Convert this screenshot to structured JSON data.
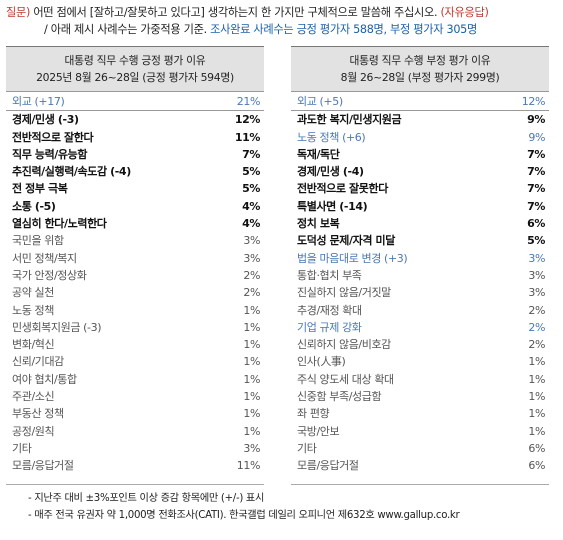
{
  "question": {
    "prefix": "질문)",
    "text": " 어떤 점에서 [잘하고/잘못하고 있다고] 생각하는지 한 가지만 구체적으로 말씀해 주십시오.",
    "tag": "(자유응답)",
    "line2_intro": "/ 아래 제시 사례수는 가중적용 기준.",
    "line2_detail": "조사완료 사례수는 긍정 평가자 588명, 부정 평가자 305명"
  },
  "left_panel": {
    "title": "대통령 직무 수행 긍정 평가 이유",
    "subtitle": "2025년 8월 26~28일 (긍정 평가자 594명)",
    "rows": [
      {
        "label": "외교 (+17)",
        "pct": "21%",
        "style": "blue"
      },
      {
        "label": "경제/민생 (-3)",
        "pct": "12%",
        "style": "bold"
      },
      {
        "label": "전반적으로 잘한다",
        "pct": "11%",
        "style": "bold"
      },
      {
        "label": "직무 능력/유능함",
        "pct": "7%",
        "style": "bold"
      },
      {
        "label": "추진력/실행력/속도감 (-4)",
        "pct": "5%",
        "style": "bold"
      },
      {
        "label": "전 정부 극복",
        "pct": "5%",
        "style": "bold"
      },
      {
        "label": "소통 (-5)",
        "pct": "4%",
        "style": "bold"
      },
      {
        "label": "열심히 한다/노력한다",
        "pct": "4%",
        "style": "bold"
      },
      {
        "label": "국민을 위함",
        "pct": "3%",
        "style": "light"
      },
      {
        "label": "서민 정책/복지",
        "pct": "3%",
        "style": "light"
      },
      {
        "label": "국가 안정/정상화",
        "pct": "2%",
        "style": "light"
      },
      {
        "label": "공약 실천",
        "pct": "2%",
        "style": "light"
      },
      {
        "label": "노동 정책",
        "pct": "1%",
        "style": "light"
      },
      {
        "label": "민생회복지원금 (-3)",
        "pct": "1%",
        "style": "light"
      },
      {
        "label": "변화/혁신",
        "pct": "1%",
        "style": "light"
      },
      {
        "label": "신뢰/기대감",
        "pct": "1%",
        "style": "light"
      },
      {
        "label": "여야 협치/통합",
        "pct": "1%",
        "style": "light"
      },
      {
        "label": "주관/소신",
        "pct": "1%",
        "style": "light"
      },
      {
        "label": "부동산 정책",
        "pct": "1%",
        "style": "light"
      },
      {
        "label": "공정/원칙",
        "pct": "1%",
        "style": "light"
      },
      {
        "label": "기타",
        "pct": "3%",
        "style": "light"
      },
      {
        "label": "모름/응답거절",
        "pct": "11%",
        "style": "light"
      }
    ]
  },
  "right_panel": {
    "title": "대통령 직무 수행 부정 평가 이유",
    "subtitle": "8월 26~28일 (부정 평가자 299명)",
    "rows": [
      {
        "label": "외교 (+5)",
        "pct": "12%",
        "style": "blue"
      },
      {
        "label": "과도한 복지/민생지원금",
        "pct": "9%",
        "style": "bold"
      },
      {
        "label": "노동 정책 (+6)",
        "pct": "9%",
        "style": "blue"
      },
      {
        "label": "독재/독단",
        "pct": "7%",
        "style": "bold"
      },
      {
        "label": "경제/민생 (-4)",
        "pct": "7%",
        "style": "bold"
      },
      {
        "label": "전반적으로 잘못한다",
        "pct": "7%",
        "style": "bold"
      },
      {
        "label": "특별사면 (-14)",
        "pct": "7%",
        "style": "bold"
      },
      {
        "label": "정치 보복",
        "pct": "6%",
        "style": "bold"
      },
      {
        "label": "도덕성 문제/자격 미달",
        "pct": "5%",
        "style": "bold"
      },
      {
        "label": "법을 마음대로 변경 (+3)",
        "pct": "3%",
        "style": "blue"
      },
      {
        "label": "통합·협치 부족",
        "pct": "3%",
        "style": "light"
      },
      {
        "label": "진실하지 않음/거짓말",
        "pct": "3%",
        "style": "light"
      },
      {
        "label": "추경/재정 확대",
        "pct": "2%",
        "style": "light"
      },
      {
        "label": "기업 규제 강화",
        "pct": "2%",
        "style": "blue"
      },
      {
        "label": "신뢰하지 않음/비호감",
        "pct": "2%",
        "style": "light"
      },
      {
        "label": "인사(人事)",
        "pct": "1%",
        "style": "light"
      },
      {
        "label": "주식 양도세 대상 확대",
        "pct": "1%",
        "style": "light"
      },
      {
        "label": "신중함 부족/성급함",
        "pct": "1%",
        "style": "light"
      },
      {
        "label": "좌 편향",
        "pct": "1%",
        "style": "light"
      },
      {
        "label": "국방/안보",
        "pct": "1%",
        "style": "light"
      },
      {
        "label": "기타",
        "pct": "6%",
        "style": "light"
      },
      {
        "label": "모름/응답거절",
        "pct": "6%",
        "style": "light"
      }
    ]
  },
  "footnotes": [
    "- 지난주 대비 ±3%포인트 이상 증감 항목에만 (+/-) 표시",
    "- 매주 전국 유권자 약 1,000명 전화조사(CATI). 한국갤럽 데일리 오피니언 제632호 www.gallup.co.kr"
  ]
}
